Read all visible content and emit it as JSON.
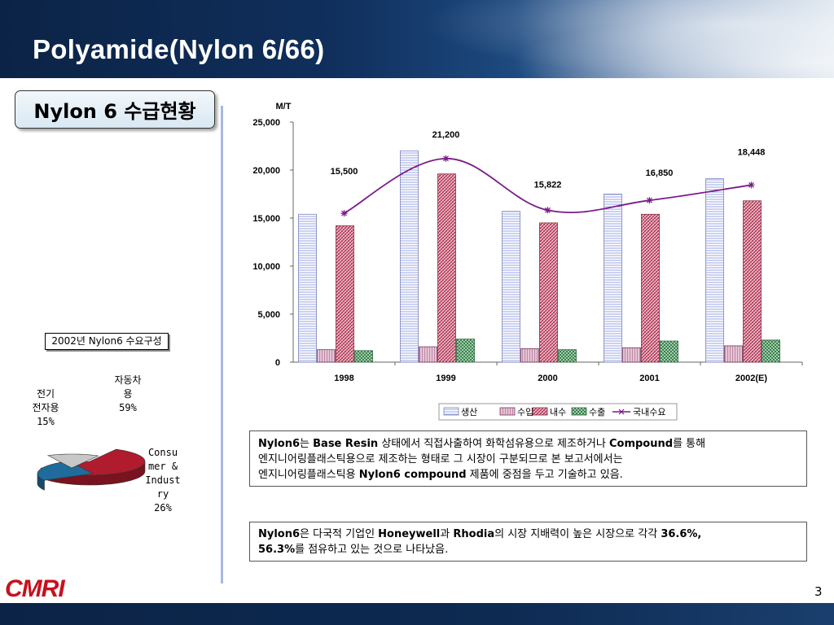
{
  "slide": {
    "title": "Polyamide(Nylon 6/66)",
    "subtitle": "Nylon 6 수급현황",
    "page_number": "3",
    "logo": "CMRI"
  },
  "chart_data": [
    {
      "type": "bar",
      "ylabel": "M/T",
      "ylim": [
        0,
        25000
      ],
      "yticks": [
        "0",
        "5,000",
        "10,000",
        "15,000",
        "20,000",
        "25,000"
      ],
      "categories": [
        "1998",
        "1999",
        "2000",
        "2001",
        "2002(E)"
      ],
      "series": [
        {
          "name": "생산",
          "type": "bar",
          "pattern": "hlines",
          "color": "#d8dcf4",
          "values": [
            15400,
            22000,
            15700,
            17500,
            19100
          ]
        },
        {
          "name": "수입",
          "type": "bar",
          "pattern": "grid",
          "color": "#c07a9a",
          "values": [
            1300,
            1600,
            1400,
            1500,
            1700
          ]
        },
        {
          "name": "내수",
          "type": "bar",
          "pattern": "diag",
          "color": "#c0506a",
          "values": [
            14200,
            19600,
            14500,
            15400,
            16800
          ]
        },
        {
          "name": "수출",
          "type": "bar",
          "pattern": "check",
          "color": "#3a8a50",
          "values": [
            1200,
            2400,
            1300,
            2200,
            2300
          ]
        },
        {
          "name": "국내수요",
          "type": "line",
          "color": "#7a1a8a",
          "values": [
            15500,
            21200,
            15822,
            16850,
            18448
          ]
        }
      ],
      "data_labels": [
        "15,500",
        "21,200",
        "15,822",
        "16,850",
        "18,448"
      ],
      "legend_position": "bottom"
    },
    {
      "type": "pie",
      "title": "2002년 Nylon6 수요구성",
      "slices": [
        {
          "label": "자동차\n용\n59%",
          "value": 59,
          "color": "#b01c2e"
        },
        {
          "label": "Consu\nmer &\nIndust\nry\n26%",
          "value": 26,
          "color": "#1f6b9c"
        },
        {
          "label": "전기\n전자용\n15%",
          "value": 15,
          "color": "#c8c8c8"
        }
      ]
    }
  ],
  "notes": [
    {
      "lines": [
        [
          {
            "t": "Nylon6",
            "b": true
          },
          {
            "t": "는 "
          },
          {
            "t": "Base Resin",
            "b": true
          },
          {
            "t": " 상태에서 직접사출하여 화학섬유용으로 제조하거나 "
          },
          {
            "t": "Compound",
            "b": true
          },
          {
            "t": "를 통해"
          }
        ],
        [
          {
            "t": "엔지니어링플래스틱용으로 제조하는 형태로 그 시장이 구분되므로 본  보고서에서는"
          }
        ],
        [
          {
            "t": "엔지니어링플래스틱용 "
          },
          {
            "t": "Nylon6 compound",
            "b": true
          },
          {
            "t": " 제품에 중점을 두고 기술하고 있음."
          }
        ]
      ]
    },
    {
      "lines": [
        [
          {
            "t": "Nylon6",
            "b": true
          },
          {
            "t": "은 다국적 기업인 "
          },
          {
            "t": "Honeywell",
            "b": true
          },
          {
            "t": "과 "
          },
          {
            "t": "Rhodia",
            "b": true
          },
          {
            "t": "의 시장 지배력이 높은 시장으로 각각 "
          },
          {
            "t": "36.6%,",
            "b": true
          }
        ],
        [
          {
            "t": "56.3%",
            "b": true
          },
          {
            "t": "를 점유하고 있는 것으로 나타났음."
          }
        ]
      ]
    }
  ]
}
